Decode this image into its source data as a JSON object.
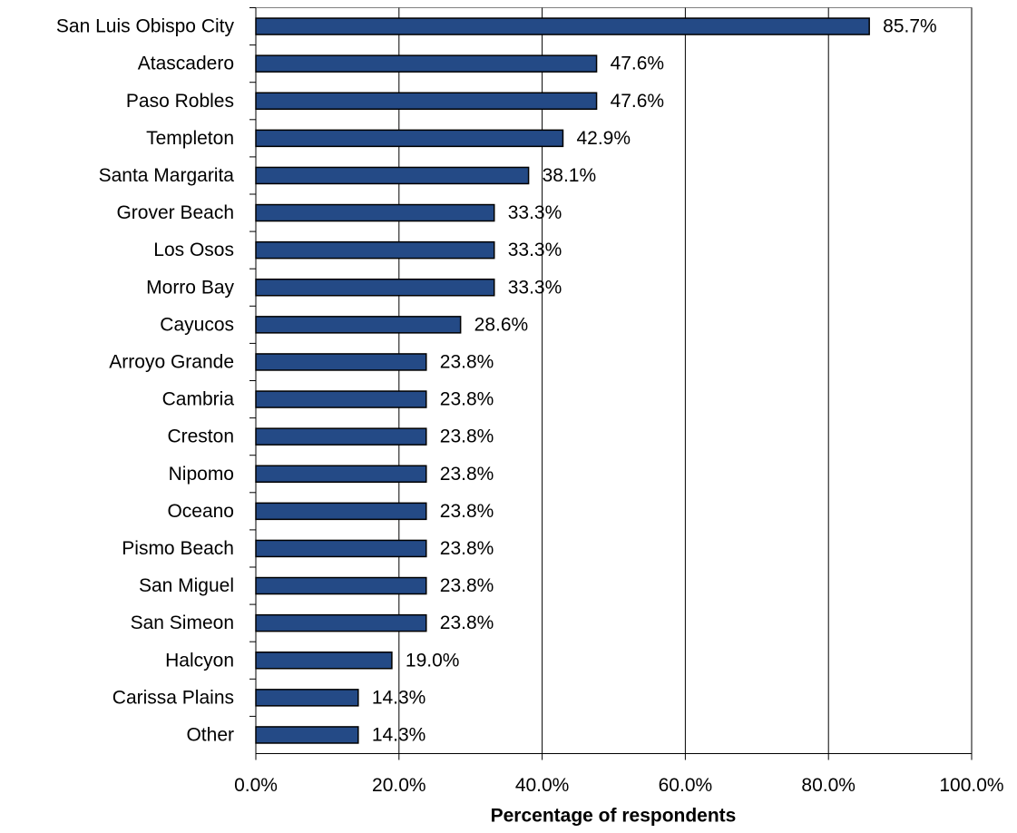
{
  "chart_data": {
    "type": "barh",
    "x_label": "Percentage of respondents",
    "categories": [
      "San Luis Obispo City",
      "Atascadero",
      "Paso Robles",
      "Templeton",
      "Santa Margarita",
      "Grover Beach",
      "Los Osos",
      "Morro Bay",
      "Cayucos",
      "Arroyo Grande",
      "Cambria",
      "Creston",
      "Nipomo",
      "Oceano",
      "Pismo Beach",
      "San Miguel",
      "San Simeon",
      "Halcyon",
      "Carissa Plains",
      "Other"
    ],
    "values": [
      85.7,
      47.6,
      47.6,
      42.9,
      38.1,
      33.3,
      33.3,
      33.3,
      28.6,
      23.8,
      23.8,
      23.8,
      23.8,
      23.8,
      23.8,
      23.8,
      23.8,
      19.0,
      14.3,
      14.3
    ],
    "value_labels": [
      "85.7%",
      "47.6%",
      "47.6%",
      "42.9%",
      "38.1%",
      "33.3%",
      "33.3%",
      "33.3%",
      "28.6%",
      "23.8%",
      "23.8%",
      "23.8%",
      "23.8%",
      "23.8%",
      "23.8%",
      "23.8%",
      "23.8%",
      "19.0%",
      "14.3%",
      "14.3%"
    ],
    "color": "#244a86",
    "xlim": [
      0,
      100
    ],
    "xticks": [
      {
        "value": 0,
        "label": "0.0%"
      },
      {
        "value": 20,
        "label": "20.0%"
      },
      {
        "value": 40,
        "label": "40.0%"
      },
      {
        "value": 60,
        "label": "60.0%"
      },
      {
        "value": 80,
        "label": "80.0%"
      },
      {
        "value": 100,
        "label": "100.0%"
      }
    ],
    "grid": true
  }
}
